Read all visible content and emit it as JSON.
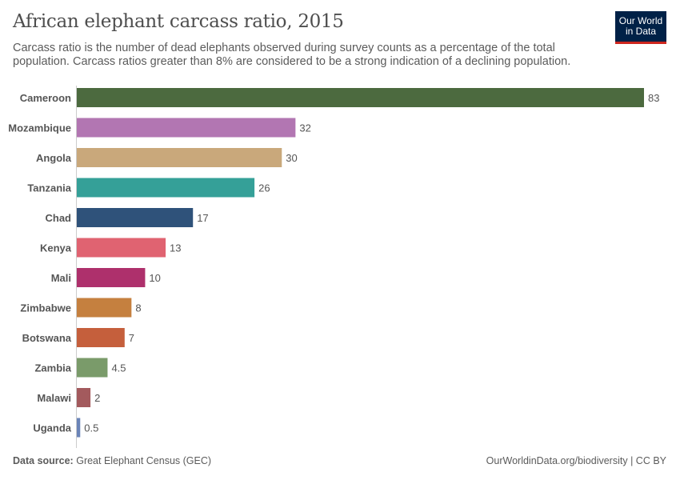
{
  "header": {
    "title": "African elephant carcass ratio, 2015",
    "subtitle": "Carcass ratio is the number of dead elephants observed during survey counts as a percentage of the total population. Carcass ratios greater than 8% are considered to be a strong indication of a declining population."
  },
  "logo": {
    "line1": "Our World",
    "line2": "in Data",
    "bg": "#002147",
    "accent": "#ce261e"
  },
  "footer": {
    "source_label": "Data source:",
    "source": "Great Elephant Census (GEC)",
    "url": "OurWorldinData.org/biodiversity | CC BY"
  },
  "chart_data": {
    "type": "bar",
    "orientation": "horizontal",
    "title": "African elephant carcass ratio, 2015",
    "xlim": [
      0,
      83
    ],
    "grid": false,
    "categories": [
      "Cameroon",
      "Mozambique",
      "Angola",
      "Tanzania",
      "Chad",
      "Kenya",
      "Mali",
      "Zimbabwe",
      "Botswana",
      "Zambia",
      "Malawi",
      "Uganda"
    ],
    "values": [
      83,
      32,
      30,
      26,
      17,
      13,
      10,
      8,
      7,
      4.5,
      2,
      0.5
    ],
    "labels": [
      "83",
      "32",
      "30",
      "26",
      "17",
      "13",
      "10",
      "8",
      "7",
      "4.5",
      "2",
      "0.5"
    ],
    "colors": [
      "#4c6a3f",
      "#b276b2",
      "#c9a87b",
      "#35a098",
      "#2f527a",
      "#e06371",
      "#ae306c",
      "#c5803f",
      "#c55f3c",
      "#7a9b6a",
      "#a35a5d",
      "#6b84b8"
    ]
  }
}
